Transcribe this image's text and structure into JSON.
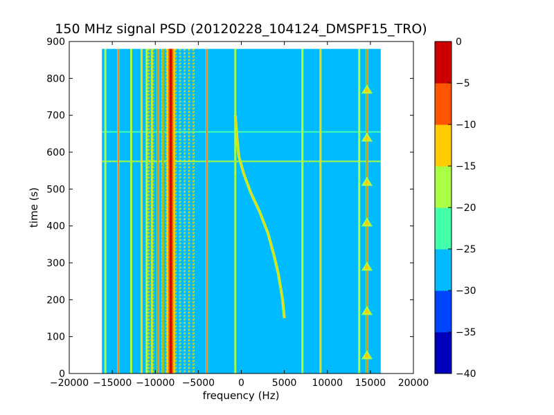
{
  "chart_data": {
    "type": "heatmap",
    "title": "150 MHz signal PSD (20120228_104124_DMSPF15_TRO)",
    "xlabel": "frequency (Hz)",
    "ylabel": "time (s)",
    "xlim": [
      -20000,
      20000
    ],
    "ylim": [
      0,
      900
    ],
    "x_ticks": [
      -20000,
      -15000,
      -10000,
      -5000,
      0,
      5000,
      10000,
      15000,
      20000
    ],
    "x_tick_labels": [
      "−20000",
      "−15000",
      "−10000",
      "−5000",
      "0",
      "5000",
      "10000",
      "15000",
      "20000"
    ],
    "y_ticks": [
      0,
      100,
      200,
      300,
      400,
      500,
      600,
      700,
      800,
      900
    ],
    "y_tick_labels": [
      "0",
      "100",
      "200",
      "300",
      "400",
      "500",
      "600",
      "700",
      "800",
      "900"
    ],
    "data_extent": {
      "x": [
        -16200,
        16200
      ],
      "y": [
        0,
        880
      ]
    },
    "colorbar": {
      "levels": [
        -40,
        -35,
        -30,
        -25,
        -20,
        -15,
        -10,
        -5,
        0
      ],
      "level_labels": [
        "−40",
        "−35",
        "−30",
        "−25",
        "−20",
        "−15",
        "−10",
        "−5",
        "0"
      ],
      "colors": [
        "#0000bb",
        "#0044ff",
        "#00bbff",
        "#44ffaa",
        "#aaff44",
        "#ffcc00",
        "#ff5500",
        "#cc0000"
      ]
    },
    "background_level": [
      -30,
      -25
    ],
    "features": {
      "carrier": {
        "x": -8200,
        "level": [
          -5,
          0
        ]
      },
      "carrier_sidebands": {
        "x_range": [
          -10800,
          -5600
        ],
        "spacing": 520,
        "level": [
          -15,
          -10
        ]
      },
      "vertical_lines": [
        {
          "x": -15800,
          "level": [
            -20,
            -15
          ]
        },
        {
          "x": -14300,
          "level": [
            -10,
            -5
          ]
        },
        {
          "x": -12800,
          "level": [
            -20,
            -15
          ]
        },
        {
          "x": -11600,
          "level": [
            -15,
            -10
          ]
        },
        {
          "x": -11000,
          "level": [
            -20,
            -15
          ]
        },
        {
          "x": -10400,
          "level": [
            -15,
            -10
          ]
        },
        {
          "x": -9700,
          "level": [
            -10,
            -5
          ]
        },
        {
          "x": -9100,
          "level": [
            -10,
            -5
          ]
        },
        {
          "x": -4000,
          "level": [
            -10,
            -5
          ]
        },
        {
          "x": -700,
          "level": [
            -20,
            -15
          ]
        },
        {
          "x": 7100,
          "level": [
            -20,
            -15
          ]
        },
        {
          "x": 9200,
          "level": [
            -15,
            -10
          ]
        },
        {
          "x": 13700,
          "level": [
            -20,
            -15
          ]
        },
        {
          "x": 14600,
          "level": [
            -10,
            -5
          ]
        }
      ],
      "doppler_trace": {
        "level": [
          -15,
          -10
        ],
        "points": [
          {
            "x": 5000,
            "y": 150
          },
          {
            "x": 4800,
            "y": 200
          },
          {
            "x": 4300,
            "y": 270
          },
          {
            "x": 3800,
            "y": 320
          },
          {
            "x": 3100,
            "y": 380
          },
          {
            "x": 2100,
            "y": 440
          },
          {
            "x": 1100,
            "y": 490
          },
          {
            "x": 300,
            "y": 540
          },
          {
            "x": -300,
            "y": 590
          },
          {
            "x": -500,
            "y": 640
          },
          {
            "x": -700,
            "y": 700
          }
        ]
      },
      "horizontal_bands": [
        {
          "y": 575,
          "level": [
            -20,
            -15
          ]
        },
        {
          "y": 655,
          "level": [
            -25,
            -20
          ]
        }
      ],
      "bursts": {
        "x": 14600,
        "y": [
          50,
          170,
          290,
          410,
          520,
          640,
          770
        ],
        "level": [
          -15,
          -10
        ]
      }
    }
  }
}
